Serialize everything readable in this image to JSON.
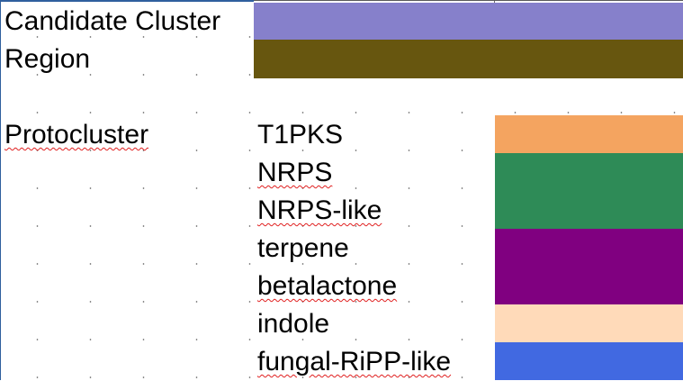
{
  "legend": {
    "candidate_cluster": {
      "label": "Candidate Cluster",
      "color": "#8680cb"
    },
    "region": {
      "label": "Region",
      "color": "#67560f"
    }
  },
  "protocluster": {
    "heading": "Protocluster",
    "items": [
      {
        "label": "T1PKS",
        "color": "#f4a460"
      },
      {
        "label": "NRPS",
        "color": "#2e8b57"
      },
      {
        "label": "NRPS-like",
        "color": "#2e8b57"
      },
      {
        "label": "terpene",
        "color": "#800080"
      },
      {
        "label": "betalactone",
        "color": "#800080"
      },
      {
        "label": "indole",
        "color": "#ffdab9"
      },
      {
        "label": "fungal-RiPP-like",
        "color": "#4169e1"
      }
    ]
  }
}
